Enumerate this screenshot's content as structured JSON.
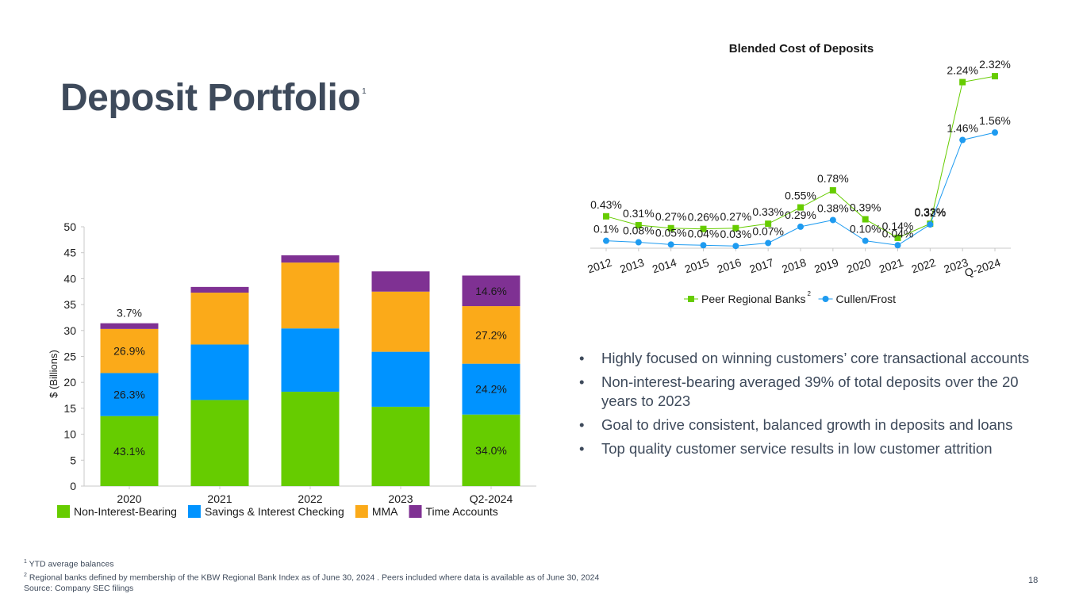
{
  "slide": {
    "title": "Deposit Portfolio",
    "title_superscript": "1",
    "page_number": "18"
  },
  "bullets": [
    "Highly focused on winning customers’ core transactional accounts",
    "Non-interest-bearing averaged 39% of total deposits over the 20 years to 2023",
    "Goal to drive consistent, balanced growth in deposits and loans",
    "Top quality customer service results in low customer attrition"
  ],
  "footnotes": [
    {
      "mark": "1",
      "text": "YTD average balances"
    },
    {
      "mark": "2",
      "text": "Regional banks defined by membership of the KBW Regional Bank Index as of June 30, 2024 . Peers included where data is available as of June 30, 2024"
    },
    {
      "mark": "",
      "text": "Source: Company SEC filings"
    }
  ],
  "chart_data": [
    {
      "type": "bar",
      "stacked": true,
      "title": "",
      "xlabel": "",
      "ylabel": "$ (Billions)",
      "ylim": [
        0,
        50
      ],
      "yticks": [
        0,
        5,
        10,
        15,
        20,
        25,
        30,
        35,
        40,
        45,
        50
      ],
      "categories": [
        "2020",
        "2021",
        "2022",
        "2023",
        "Q2-2024"
      ],
      "legend_position": "bottom",
      "series": [
        {
          "name": "Non-Interest-Bearing",
          "color": "#66cc00",
          "values": [
            13.5,
            16.6,
            18.2,
            15.3,
            13.8
          ],
          "labels": [
            "43.1%",
            "",
            "",
            "",
            "34.0%"
          ]
        },
        {
          "name": "Savings & Interest Checking",
          "color": "#0093ff",
          "values": [
            8.3,
            10.7,
            12.2,
            10.6,
            9.8
          ],
          "labels": [
            "26.3%",
            "",
            "",
            "",
            "24.2%"
          ]
        },
        {
          "name": "MMA",
          "color": "#fbaa19",
          "values": [
            8.5,
            10.0,
            12.7,
            11.6,
            11.1
          ],
          "labels": [
            "26.9%",
            "",
            "",
            "",
            "27.2%"
          ]
        },
        {
          "name": "Time Accounts",
          "color": "#7f3193",
          "values": [
            1.1,
            1.1,
            1.4,
            3.9,
            5.9
          ],
          "labels": [
            "3.7%",
            "",
            "",
            "",
            "14.6%"
          ]
        }
      ]
    },
    {
      "type": "line",
      "title": "Blended Cost of Deposits",
      "xlabel": "",
      "ylabel": "",
      "ylim": [
        0,
        2.4
      ],
      "grid": false,
      "legend_position": "bottom",
      "x": [
        "2012",
        "2013",
        "2014",
        "2015",
        "2016",
        "2017",
        "2018",
        "2019",
        "2020",
        "2021",
        "2022",
        "2023",
        "Q-2024"
      ],
      "series": [
        {
          "name": "Peer Regional Banks",
          "name_superscript": "2",
          "color": "#66cc00",
          "marker": "square",
          "values": [
            0.43,
            0.31,
            0.27,
            0.26,
            0.27,
            0.33,
            0.55,
            0.78,
            0.39,
            0.14,
            0.33,
            2.24,
            2.32
          ],
          "labels": [
            "0.43%",
            "0.31%",
            "0.27%",
            "0.26%",
            "0.27%",
            "0.33%",
            "0.55%",
            "0.78%",
            "0.39%",
            "0.14%",
            "0.33%",
            "2.24%",
            "2.32%"
          ]
        },
        {
          "name": "Cullen/Frost",
          "color": "#1e9bf0",
          "marker": "circle",
          "values": [
            0.1,
            0.08,
            0.05,
            0.04,
            0.03,
            0.07,
            0.29,
            0.38,
            0.1,
            0.04,
            0.32,
            1.46,
            1.56
          ],
          "labels": [
            "0.1%",
            "0.08%",
            "0.05%",
            "0.04%",
            "0.03%",
            "0.07%",
            "0.29%",
            "0.38%",
            "0.10%",
            "0.04%",
            "0.32%",
            "1.46%",
            "1.56%"
          ]
        }
      ]
    }
  ]
}
